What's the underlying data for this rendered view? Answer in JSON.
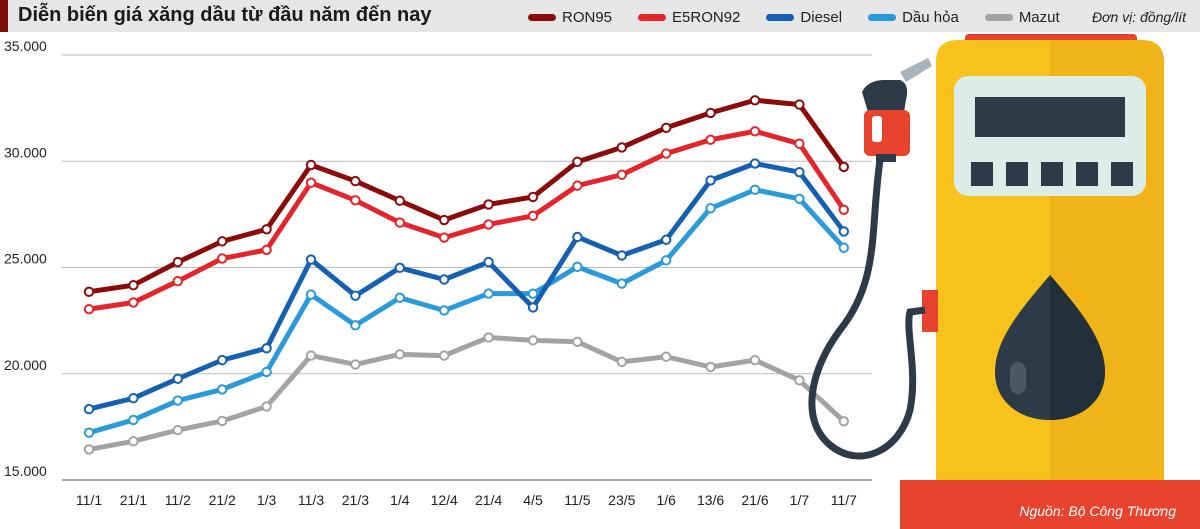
{
  "header": {
    "title": "Diễn biến giá xăng dầu từ đầu năm đến nay",
    "unit": "Đơn vị: đồng/lít"
  },
  "footer": {
    "source": "Nguồn: Bộ Công Thương"
  },
  "colors": {
    "RON95": "#8b0a0a",
    "E5RON92": "#e3262b",
    "Diesel": "#1560b0",
    "Dau_hoa": "#2b9ad8",
    "Mazut": "#a3a3a3"
  },
  "chart_data": {
    "type": "line",
    "title": "Diễn biến giá xăng dầu từ đầu năm đến nay",
    "xlabel": "",
    "ylabel": "Đơn vị: đồng/lít",
    "ylim": [
      15000,
      35000
    ],
    "yticks": [
      15000,
      20000,
      25000,
      30000,
      35000
    ],
    "ytick_labels": [
      "15.000",
      "20.000",
      "25.000",
      "30.000",
      "35.000"
    ],
    "grid": true,
    "legend_position": "top",
    "categories": [
      "11/1",
      "21/1",
      "11/2",
      "21/2",
      "1/3",
      "11/3",
      "21/3",
      "1/4",
      "12/4",
      "21/4",
      "4/5",
      "11/5",
      "23/5",
      "1/6",
      "13/6",
      "21/6",
      "1/7",
      "11/7"
    ],
    "series": [
      {
        "name": "RON95",
        "color": "#8b0a0a",
        "values": [
          23858,
          24168,
          25253,
          26229,
          26798,
          29824,
          29067,
          28142,
          27234,
          27968,
          28319,
          29973,
          30651,
          31575,
          32275,
          32870,
          32668,
          29733
        ]
      },
      {
        "name": "E5RON92",
        "color": "#e3262b",
        "values": [
          23040,
          23353,
          24356,
          25423,
          25829,
          28989,
          28163,
          27113,
          26406,
          27025,
          27431,
          28853,
          29366,
          30362,
          31012,
          31411,
          30827,
          27717
        ]
      },
      {
        "name": "Diesel",
        "color": "#1560b0",
        "values": [
          18336,
          18850,
          19764,
          20641,
          21199,
          25372,
          23673,
          24984,
          24435,
          25256,
          23119,
          26438,
          25566,
          26306,
          29099,
          29893,
          29487,
          26697
        ]
      },
      {
        "name": "Dầu hỏa",
        "color": "#2b9ad8",
        "values": [
          17226,
          17827,
          18740,
          19264,
          20082,
          23724,
          22278,
          23577,
          22978,
          23772,
          23770,
          25029,
          24242,
          25336,
          27788,
          28657,
          28234,
          25930
        ]
      },
      {
        "name": "Mazut",
        "color": "#a3a3a3",
        "values": [
          16440,
          16823,
          17349,
          17779,
          18459,
          20856,
          20438,
          20913,
          20855,
          21709,
          21571,
          21505,
          20559,
          20800,
          20319,
          20640,
          19690,
          17764
        ]
      }
    ]
  }
}
